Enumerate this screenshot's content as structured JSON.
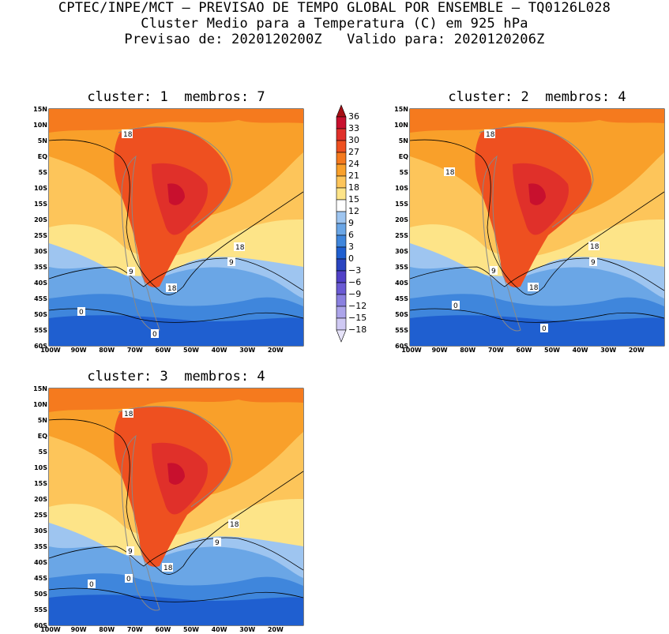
{
  "header": {
    "line1": "CPTEC/INPE/MCT – PREVISAO DE TEMPO GLOBAL POR ENSEMBLE – TQ0126L028",
    "line2": "Cluster Medio para a Temperatura (C) em 925 hPa",
    "line3": "Previsao de: 2020120200Z   Valido para: 2020120206Z"
  },
  "panels": [
    {
      "title": "cluster: 1  membros: 7"
    },
    {
      "title": "cluster: 2  membros: 4"
    },
    {
      "title": "cluster: 3  membros: 4"
    }
  ],
  "axes": {
    "lat_labels": [
      "15N",
      "10N",
      "5N",
      "EQ",
      "5S",
      "10S",
      "15S",
      "20S",
      "25S",
      "30S",
      "35S",
      "40S",
      "45S",
      "50S",
      "55S",
      "60S"
    ],
    "lon_labels": [
      "100W",
      "90W",
      "80W",
      "70W",
      "60W",
      "50W",
      "40W",
      "30W",
      "20W"
    ]
  },
  "contour_labels": [
    "18",
    "9",
    "0"
  ],
  "colorbar": {
    "levels": [
      "36",
      "33",
      "30",
      "27",
      "24",
      "21",
      "18",
      "15",
      "12",
      "9",
      "6",
      "3",
      "0",
      "−3",
      "−6",
      "−9",
      "−12",
      "−15",
      "−18"
    ],
    "colors": [
      "#a50f15",
      "#c8102e",
      "#e0302a",
      "#ee5020",
      "#f57a1e",
      "#f9a02a",
      "#fdc55a",
      "#fde488",
      "#ffffff",
      "#9ec5f0",
      "#6aa6e6",
      "#3f86dc",
      "#1f5fd0",
      "#2a44c0",
      "#5141c8",
      "#6a5ad4",
      "#8a80e0",
      "#aca4ea",
      "#cfc9f3",
      "#e6e3f9"
    ]
  },
  "colors": {
    "land_outline": "#888888",
    "contour": "#000000"
  }
}
